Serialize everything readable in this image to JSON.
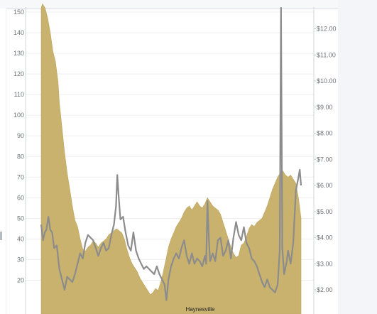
{
  "chart_data": {
    "type": "area",
    "left_axis": {
      "ticks": [
        "20",
        "30",
        "40",
        "50",
        "60",
        "70",
        "80",
        "90",
        "100",
        "110",
        "120",
        "130",
        "140",
        "150",
        "160"
      ],
      "range": [
        17,
        160
      ]
    },
    "right_axis": {
      "ticks": [
        "$2.00",
        "$3.00",
        "$4.00",
        "$5.00",
        "$6.00",
        "$7.00",
        "$8.00",
        "$9.00",
        "$10.00",
        "$11.00",
        "$12.00"
      ],
      "range": [
        1.0,
        12.95
      ]
    },
    "x_range": [
      0,
      100
    ],
    "panel_label": "Haynesville",
    "grid": true,
    "area_series": {
      "axis": "left",
      "color": "#c9b26e",
      "points": [
        [
          0,
          152
        ],
        [
          0.5,
          154
        ],
        [
          1.5,
          152
        ],
        [
          2.5,
          147
        ],
        [
          3.5,
          140
        ],
        [
          4.5,
          131
        ],
        [
          5.5,
          126
        ],
        [
          6.5,
          116
        ],
        [
          7,
          106
        ],
        [
          8,
          94
        ],
        [
          9,
          82
        ],
        [
          10,
          72
        ],
        [
          11,
          64
        ],
        [
          12,
          56
        ],
        [
          13,
          49
        ],
        [
          14,
          46
        ],
        [
          15,
          40
        ],
        [
          16,
          35
        ],
        [
          17,
          34
        ],
        [
          18,
          36
        ],
        [
          19,
          37
        ],
        [
          20,
          39
        ],
        [
          21,
          38
        ],
        [
          22,
          36
        ],
        [
          23,
          38
        ],
        [
          24,
          39
        ],
        [
          25,
          40
        ],
        [
          26,
          42
        ],
        [
          27,
          43
        ],
        [
          28,
          44
        ],
        [
          29,
          45
        ],
        [
          30,
          44
        ],
        [
          31,
          43
        ],
        [
          32,
          40
        ],
        [
          33,
          35
        ],
        [
          34,
          31
        ],
        [
          35,
          28
        ],
        [
          36,
          26
        ],
        [
          37,
          24
        ],
        [
          38,
          21
        ],
        [
          39,
          19
        ],
        [
          40,
          17
        ],
        [
          41,
          15
        ],
        [
          42,
          13
        ],
        [
          43,
          14
        ],
        [
          44,
          16
        ],
        [
          45,
          15
        ],
        [
          46,
          19
        ],
        [
          47,
          24
        ],
        [
          48,
          30
        ],
        [
          49,
          36
        ],
        [
          50,
          40
        ],
        [
          51,
          43
        ],
        [
          52,
          46
        ],
        [
          53,
          48
        ],
        [
          54,
          50
        ],
        [
          55,
          53
        ],
        [
          56,
          55
        ],
        [
          57,
          56
        ],
        [
          58,
          54
        ],
        [
          59,
          56
        ],
        [
          60,
          58
        ],
        [
          61,
          56
        ],
        [
          62,
          55
        ],
        [
          63,
          57
        ],
        [
          64,
          60
        ],
        [
          65,
          58
        ],
        [
          66,
          56
        ],
        [
          67,
          55
        ],
        [
          68,
          54
        ],
        [
          69,
          52
        ],
        [
          70,
          48
        ],
        [
          71,
          44
        ],
        [
          72,
          40
        ],
        [
          73,
          36
        ],
        [
          74,
          33
        ],
        [
          75,
          31
        ],
        [
          76,
          32
        ],
        [
          77,
          37
        ],
        [
          78,
          38
        ],
        [
          79,
          41
        ],
        [
          80,
          45
        ],
        [
          81,
          47
        ],
        [
          82,
          46
        ],
        [
          83,
          48
        ],
        [
          84,
          49
        ],
        [
          85,
          50
        ],
        [
          86,
          53
        ],
        [
          87,
          56
        ],
        [
          88,
          60
        ],
        [
          89,
          64
        ],
        [
          90,
          67
        ],
        [
          91,
          70
        ],
        [
          92,
          72
        ],
        [
          93,
          73
        ],
        [
          94,
          71
        ],
        [
          95,
          70
        ],
        [
          96,
          71
        ],
        [
          97,
          69
        ],
        [
          98,
          67
        ],
        [
          99,
          60
        ],
        [
          99.5,
          55
        ],
        [
          100,
          50
        ]
      ]
    },
    "line_series": {
      "axis": "right",
      "color": "#8c8c8c",
      "points": [
        [
          0,
          4.5
        ],
        [
          0.7,
          3.9
        ],
        [
          1.4,
          4.2
        ],
        [
          2,
          4.3
        ],
        [
          2.8,
          4.8
        ],
        [
          3.5,
          4.3
        ],
        [
          4.2,
          4.2
        ],
        [
          5,
          3.6
        ],
        [
          6,
          3.7
        ],
        [
          7,
          2.8
        ],
        [
          8,
          2.4
        ],
        [
          9,
          2.0
        ],
        [
          10,
          2.5
        ],
        [
          11,
          2.4
        ],
        [
          12,
          2.3
        ],
        [
          13,
          2.6
        ],
        [
          14,
          3.0
        ],
        [
          15,
          3.4
        ],
        [
          16,
          3.2
        ],
        [
          17,
          3.8
        ],
        [
          18,
          4.1
        ],
        [
          19,
          4.0
        ],
        [
          20,
          3.9
        ],
        [
          21,
          3.6
        ],
        [
          22,
          3.3
        ],
        [
          23,
          3.6
        ],
        [
          24,
          3.8
        ],
        [
          25,
          3.5
        ],
        [
          26,
          3.6
        ],
        [
          27,
          4.1
        ],
        [
          28,
          4.5
        ],
        [
          28.8,
          5.2
        ],
        [
          29.3,
          6.4
        ],
        [
          29.8,
          5.6
        ],
        [
          30.5,
          4.7
        ],
        [
          31.5,
          4.8
        ],
        [
          32.5,
          4.2
        ],
        [
          33.5,
          3.7
        ],
        [
          34.5,
          3.5
        ],
        [
          35.5,
          4.2
        ],
        [
          36.5,
          3.5
        ],
        [
          37.5,
          3.2
        ],
        [
          38.5,
          3.0
        ],
        [
          39.5,
          2.8
        ],
        [
          40.5,
          2.9
        ],
        [
          41.5,
          2.8
        ],
        [
          42.5,
          2.7
        ],
        [
          43.5,
          2.6
        ],
        [
          44.5,
          2.9
        ],
        [
          45.5,
          2.6
        ],
        [
          46.5,
          2.4
        ],
        [
          47.5,
          2.2
        ],
        [
          48.2,
          1.6
        ],
        [
          49,
          2.4
        ],
        [
          50,
          2.9
        ],
        [
          51,
          3.2
        ],
        [
          52,
          3.4
        ],
        [
          53,
          3.2
        ],
        [
          54,
          3.6
        ],
        [
          55,
          3.9
        ],
        [
          56,
          3.3
        ],
        [
          57,
          3.0
        ],
        [
          58,
          3.4
        ],
        [
          59,
          3.0
        ],
        [
          60,
          3.2
        ],
        [
          61,
          3.1
        ],
        [
          62,
          2.9
        ],
        [
          63,
          3.3
        ],
        [
          63.5,
          3.0
        ],
        [
          64,
          5.4
        ],
        [
          64.5,
          4.0
        ],
        [
          65,
          3.1
        ],
        [
          66,
          3.4
        ],
        [
          67,
          3.1
        ],
        [
          68,
          3.9
        ],
        [
          69,
          4.0
        ],
        [
          70,
          3.3
        ],
        [
          71,
          3.5
        ],
        [
          72,
          3.9
        ],
        [
          73,
          3.2
        ],
        [
          74,
          4.0
        ],
        [
          75,
          4.6
        ],
        [
          76,
          4.1
        ],
        [
          77,
          3.9
        ],
        [
          78,
          4.4
        ],
        [
          79,
          3.8
        ],
        [
          80,
          3.6
        ],
        [
          81,
          3.2
        ],
        [
          82,
          3.1
        ],
        [
          83,
          2.9
        ],
        [
          84,
          2.6
        ],
        [
          85,
          2.3
        ],
        [
          86,
          2.1
        ],
        [
          87,
          2.4
        ],
        [
          88,
          2.1
        ],
        [
          89,
          2.0
        ],
        [
          90,
          1.9
        ],
        [
          91,
          2.2
        ],
        [
          91.8,
          3.5
        ],
        [
          92.3,
          12.8
        ],
        [
          92.8,
          3.6
        ],
        [
          93.5,
          2.6
        ],
        [
          94.5,
          3.1
        ],
        [
          95,
          3.5
        ],
        [
          96,
          3.0
        ],
        [
          97,
          3.8
        ],
        [
          98,
          5.8
        ],
        [
          99,
          6.3
        ],
        [
          99.5,
          6.6
        ],
        [
          100,
          6.0
        ]
      ]
    }
  }
}
